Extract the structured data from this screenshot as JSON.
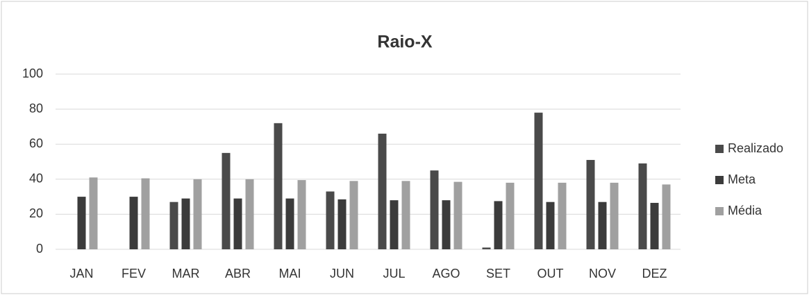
{
  "chart_data": {
    "type": "bar",
    "title": "Raio-X",
    "categories": [
      "JAN",
      "FEV",
      "MAR",
      "ABR",
      "MAI",
      "JUN",
      "JUL",
      "AGO",
      "SET",
      "OUT",
      "NOV",
      "DEZ"
    ],
    "series": [
      {
        "name": "Realizado",
        "color": "#4a4a4a",
        "values": [
          null,
          null,
          27,
          55,
          72,
          33,
          66,
          45,
          1,
          78,
          51,
          49
        ]
      },
      {
        "name": "Meta",
        "color": "#3b3b3b",
        "values": [
          30,
          30,
          29,
          29,
          29,
          28.5,
          28,
          28,
          27.5,
          27,
          27,
          26.5
        ]
      },
      {
        "name": "Média",
        "color": "#a0a0a0",
        "values": [
          41,
          40.5,
          40,
          40,
          39.5,
          39,
          39,
          38.5,
          38,
          38,
          38,
          37
        ]
      }
    ],
    "ylim": [
      0,
      100
    ],
    "yticks": [
      0,
      20,
      40,
      60,
      80,
      100
    ],
    "grid": true,
    "legend": "right"
  }
}
